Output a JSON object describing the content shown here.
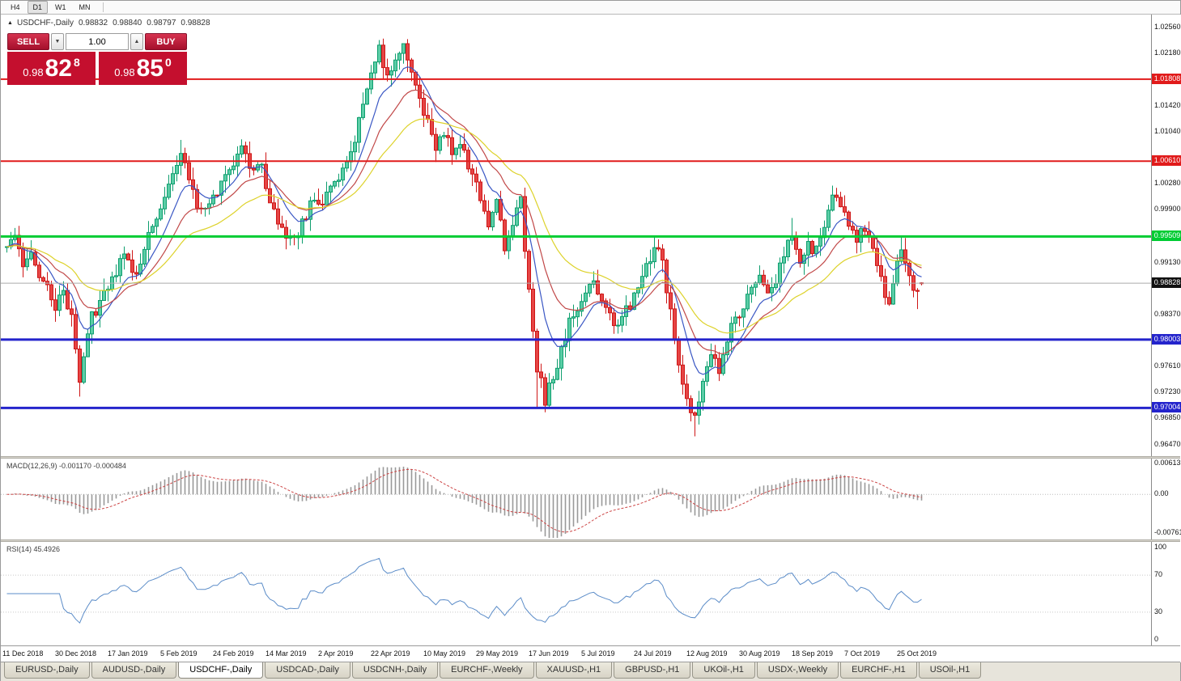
{
  "timeframe_toolbar": {
    "items": [
      "H4",
      "D1",
      "W1",
      "MN"
    ],
    "active": "D1"
  },
  "icons": {
    "volume_down": "▼",
    "volume_up": "▲",
    "symbol_marker": "▲"
  },
  "info_line": {
    "symbol": "USDCHF-,Daily",
    "open": "0.98832",
    "high": "0.98840",
    "low": "0.98797",
    "close": "0.98828"
  },
  "trade_panel": {
    "sell_label": "SELL",
    "buy_label": "BUY",
    "volume": "1.00",
    "sell_price": {
      "prefix": "0.98",
      "big": "82",
      "sup": "8"
    },
    "buy_price": {
      "prefix": "0.98",
      "big": "85",
      "sup": "0"
    }
  },
  "colors": {
    "candle_up": "#0e9e6e",
    "candle_up_fill": "#5bcda6",
    "candle_down": "#ce1616",
    "candle_down_fill": "#e64545",
    "macd_hist": "#999999",
    "macd_signal": "#cc4444",
    "rsi_line": "#5b8cc8",
    "last_price_line": "#ababab",
    "last_price_bg": "#111111",
    "panel_red": "#c40f2e",
    "level_red": "#e11b1b",
    "level_green": "#00cc33",
    "level_blue": "#2424cc"
  },
  "chart_data": {
    "type": "candlestick+indicators",
    "symbol": "USDCHF",
    "timeframe": "Daily",
    "y_range": [
      0.963,
      1.0274
    ],
    "price_axis_ticks": [
      {
        "value": 1.0256,
        "label": "1.02560"
      },
      {
        "value": 1.0218,
        "label": "1.02180"
      },
      {
        "value": 1.0142,
        "label": "1.01420"
      },
      {
        "value": 1.0104,
        "label": "1.01040"
      },
      {
        "value": 1.0028,
        "label": "1.00280"
      },
      {
        "value": 0.999,
        "label": "0.99900"
      },
      {
        "value": 0.9913,
        "label": "0.99130"
      },
      {
        "value": 0.9837,
        "label": "0.98370"
      },
      {
        "value": 0.9761,
        "label": "0.97610"
      },
      {
        "value": 0.9723,
        "label": "0.97230"
      },
      {
        "value": 0.9685,
        "label": "0.96850"
      },
      {
        "value": 0.9647,
        "label": "0.96470"
      }
    ],
    "levels": [
      {
        "value": 1.01808,
        "label": "1.01808",
        "color": "#e11b1b",
        "width": 2
      },
      {
        "value": 1.0061,
        "label": "1.00610",
        "color": "#e11b1b",
        "width": 2
      },
      {
        "value": 0.99509,
        "label": "0.99509",
        "color": "#00cc33",
        "width": 3
      },
      {
        "value": 0.98003,
        "label": "0.98003",
        "color": "#2424cc",
        "width": 3
      },
      {
        "value": 0.97004,
        "label": "0.97004",
        "color": "#2424cc",
        "width": 3
      }
    ],
    "last_price": {
      "value": 0.98828,
      "label": "0.98828"
    },
    "candles": {
      "count": 227,
      "anchors": [
        [
          0,
          0.9928
        ],
        [
          2,
          0.9952
        ],
        [
          4,
          0.9912
        ],
        [
          6,
          0.9938
        ],
        [
          9,
          0.988
        ],
        [
          12,
          0.9852
        ],
        [
          14,
          0.9868
        ],
        [
          16,
          0.984
        ],
        [
          18,
          0.9738
        ],
        [
          20,
          0.9818
        ],
        [
          23,
          0.9858
        ],
        [
          26,
          0.9888
        ],
        [
          29,
          0.9922
        ],
        [
          32,
          0.99
        ],
        [
          35,
          0.9955
        ],
        [
          38,
          0.9992
        ],
        [
          41,
          1.0035
        ],
        [
          43,
          1.0068
        ],
        [
          45,
          1.004
        ],
        [
          47,
          1.0002
        ],
        [
          49,
          0.9985
        ],
        [
          52,
          1.001
        ],
        [
          55,
          1.0048
        ],
        [
          58,
          1.0075
        ],
        [
          61,
          1.004
        ],
        [
          63,
          1.0052
        ],
        [
          65,
          1.0008
        ],
        [
          67,
          0.9968
        ],
        [
          69,
          0.9942
        ],
        [
          72,
          0.9958
        ],
        [
          75,
          0.9995
        ],
        [
          78,
          1.0005
        ],
        [
          81,
          1.0028
        ],
        [
          84,
          1.0062
        ],
        [
          86,
          1.0098
        ],
        [
          88,
          1.0148
        ],
        [
          90,
          1.0198
        ],
        [
          92,
          1.0225
        ],
        [
          94,
          1.0188
        ],
        [
          96,
          1.021
        ],
        [
          98,
          1.0228
        ],
        [
          100,
          1.019
        ],
        [
          102,
          1.0155
        ],
        [
          104,
          1.012
        ],
        [
          106,
          1.0082
        ],
        [
          108,
          1.0105
        ],
        [
          110,
          1.0068
        ],
        [
          112,
          1.0088
        ],
        [
          114,
          1.0052
        ],
        [
          117,
          1.001
        ],
        [
          119,
          0.9975
        ],
        [
          121,
          1.0002
        ],
        [
          123,
          0.9935
        ],
        [
          125,
          0.9968
        ],
        [
          127,
          1.0
        ],
        [
          129,
          0.987
        ],
        [
          131,
          0.9758
        ],
        [
          133,
          0.9712
        ],
        [
          135,
          0.9748
        ],
        [
          137,
          0.9788
        ],
        [
          139,
          0.9822
        ],
        [
          141,
          0.9845
        ],
        [
          143,
          0.9872
        ],
        [
          145,
          0.9892
        ],
        [
          147,
          0.9858
        ],
        [
          149,
          0.9838
        ],
        [
          151,
          0.9818
        ],
        [
          153,
          0.9842
        ],
        [
          156,
          0.987
        ],
        [
          158,
          0.9905
        ],
        [
          160,
          0.9938
        ],
        [
          162,
          0.9912
        ],
        [
          164,
          0.9845
        ],
        [
          166,
          0.9762
        ],
        [
          168,
          0.972
        ],
        [
          170,
          0.968
        ],
        [
          172,
          0.9742
        ],
        [
          174,
          0.9775
        ],
        [
          176,
          0.9752
        ],
        [
          178,
          0.98
        ],
        [
          180,
          0.9828
        ],
        [
          182,
          0.9845
        ],
        [
          184,
          0.9872
        ],
        [
          186,
          0.9898
        ],
        [
          188,
          0.9862
        ],
        [
          190,
          0.9888
        ],
        [
          192,
          0.992
        ],
        [
          194,
          0.9955
        ],
        [
          196,
          0.9918
        ],
        [
          198,
          0.9942
        ],
        [
          200,
          0.9928
        ],
        [
          202,
          0.9962
        ],
        [
          204,
          1.0002
        ],
        [
          205,
          1.0015
        ],
        [
          206,
          0.9988
        ],
        [
          208,
          0.9975
        ],
        [
          210,
          0.9942
        ],
        [
          212,
          0.9968
        ],
        [
          214,
          0.993
        ],
        [
          216,
          0.9885
        ],
        [
          218,
          0.9852
        ],
        [
          220,
          0.9905
        ],
        [
          221,
          0.9938
        ],
        [
          223,
          0.9902
        ],
        [
          225,
          0.9862
        ],
        [
          226,
          0.98828
        ]
      ],
      "overrides": {
        "18": {
          "low": 0.9717,
          "close": 0.9738
        },
        "43": {
          "high": 1.0092
        },
        "58": {
          "high": 1.0093
        },
        "92": {
          "high": 1.0238
        },
        "98": {
          "high": 1.0232
        },
        "127": {
          "high": 1.0006
        },
        "131": {
          "low": 0.9702
        },
        "133": {
          "low": 0.9694
        },
        "145": {
          "high": 0.99
        },
        "160": {
          "high": 0.9952
        },
        "170": {
          "low": 0.9659
        },
        "194": {
          "high": 0.9978
        },
        "205": {
          "high": 1.0022
        },
        "221": {
          "high": 0.995
        },
        "225": {
          "low": 0.9845
        },
        "226": {
          "open": 0.98832,
          "high": 0.9884,
          "low": 0.98797,
          "close": 0.98828
        }
      }
    },
    "moving_averages": [
      {
        "period": 9,
        "color": "#3a57c4"
      },
      {
        "period": 18,
        "color": "#c14848"
      },
      {
        "period": 34,
        "color": "#ddd22a"
      }
    ],
    "macd": {
      "label": "MACD(12,26,9) -0.001170 -0.000484",
      "axis": [
        {
          "value": 0.00613,
          "label": "0.00613"
        },
        {
          "value": 0,
          "label": "0.00"
        },
        {
          "value": -0.00761,
          "label": "-0.00761"
        }
      ],
      "range": [
        -0.0088,
        0.007
      ]
    },
    "rsi": {
      "label": "RSI(14) 45.4926",
      "period": 14,
      "axis": [
        {
          "value": 100,
          "label": "100"
        },
        {
          "value": 70,
          "label": "70"
        },
        {
          "value": 30,
          "label": "30"
        },
        {
          "value": 0,
          "label": "0"
        }
      ],
      "guide_levels": [
        70,
        30
      ],
      "range": [
        -6,
        106
      ]
    },
    "date_axis": [
      "11 Dec 2018",
      "30 Dec 2018",
      "17 Jan 2019",
      "5 Feb 2019",
      "24 Feb 2019",
      "14 Mar 2019",
      "2 Apr 2019",
      "22 Apr 2019",
      "10 May 2019",
      "29 May 2019",
      "17 Jun 2019",
      "5 Jul 2019",
      "24 Jul 2019",
      "12 Aug 2019",
      "30 Aug 2019",
      "18 Sep 2019",
      "7 Oct 2019",
      "25 Oct 2019"
    ]
  },
  "bottom_tabs": {
    "active_index": 2,
    "tabs": [
      "EURUSD-,Daily",
      "AUDUSD-,Daily",
      "USDCHF-,Daily",
      "USDCAD-,Daily",
      "USDCNH-,Daily",
      "EURCHF-,Weekly",
      "XAUUSD-,H1",
      "GBPUSD-,H1",
      "UKOil-,H1",
      "USDX-,Weekly",
      "EURCHF-,H1",
      "USOil-,H1"
    ]
  }
}
